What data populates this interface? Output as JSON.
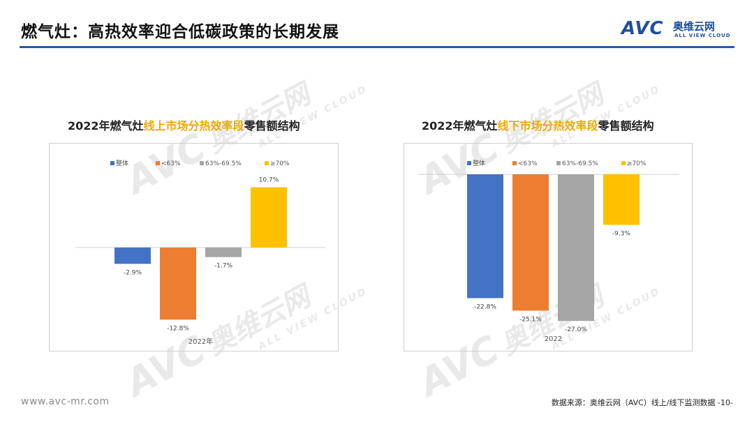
{
  "header": {
    "title": "燃气灶：高热效率迎合低碳政策的长期发展",
    "logo_text": "AVC",
    "logo_cn": "奥维云网",
    "logo_en": "ALL VIEW CLOUD"
  },
  "watermark": {
    "main": "AVC",
    "cn": "奥维云网",
    "sub": "ALL VIEW CLOUD"
  },
  "colors": {
    "rule": "#1f5fa8",
    "整体": "#4472c4",
    "<63%": "#ed7d31",
    "63%-69.5%": "#a5a5a5",
    "≥70%": "#ffc000",
    "title_highlight": "#f0a800"
  },
  "chart_data": [
    {
      "type": "bar",
      "title": "2022年燃气灶线上市场分热效率段零售额结构",
      "title_parts": {
        "prefix": "2022年燃气灶",
        "highlight": "线上市场分热效率段",
        "suffix": "零售额结构"
      },
      "categories": [
        "2022年"
      ],
      "series": [
        {
          "name": "整体",
          "values": [
            -2.9
          ],
          "label": "-2.9%"
        },
        {
          "name": "<63%",
          "values": [
            -12.8
          ],
          "label": "-12.8%"
        },
        {
          "name": "63%-69.5%",
          "values": [
            -1.7
          ],
          "label": "-1.7%"
        },
        {
          "name": "≥70%",
          "values": [
            10.7
          ],
          "label": "10.7%"
        }
      ],
      "ylim": [
        -14,
        12
      ],
      "legend": "top",
      "grid": false
    },
    {
      "type": "bar",
      "title": "2022年燃气灶线下市场分热效率段零售额结构",
      "title_parts": {
        "prefix": "2022年燃气灶",
        "highlight": "线下市场分热效率段",
        "suffix": "零售额结构"
      },
      "categories": [
        "2022"
      ],
      "series": [
        {
          "name": "整体",
          "values": [
            -22.8
          ],
          "label": "-22.8%"
        },
        {
          "name": "<63%",
          "values": [
            -25.1
          ],
          "label": "-25.1%"
        },
        {
          "name": "63%-69.5%",
          "values": [
            -27.0
          ],
          "label": "-27.0%"
        },
        {
          "name": "≥70%",
          "values": [
            -9.3
          ],
          "label": "-9.3%"
        }
      ],
      "ylim": [
        -28,
        0
      ],
      "legend": "top",
      "grid": false
    }
  ],
  "footer": {
    "url": "www.avc-mr.com",
    "source": "数据来源：奥维云网（AVC）线上/线下监测数据  -10-"
  }
}
